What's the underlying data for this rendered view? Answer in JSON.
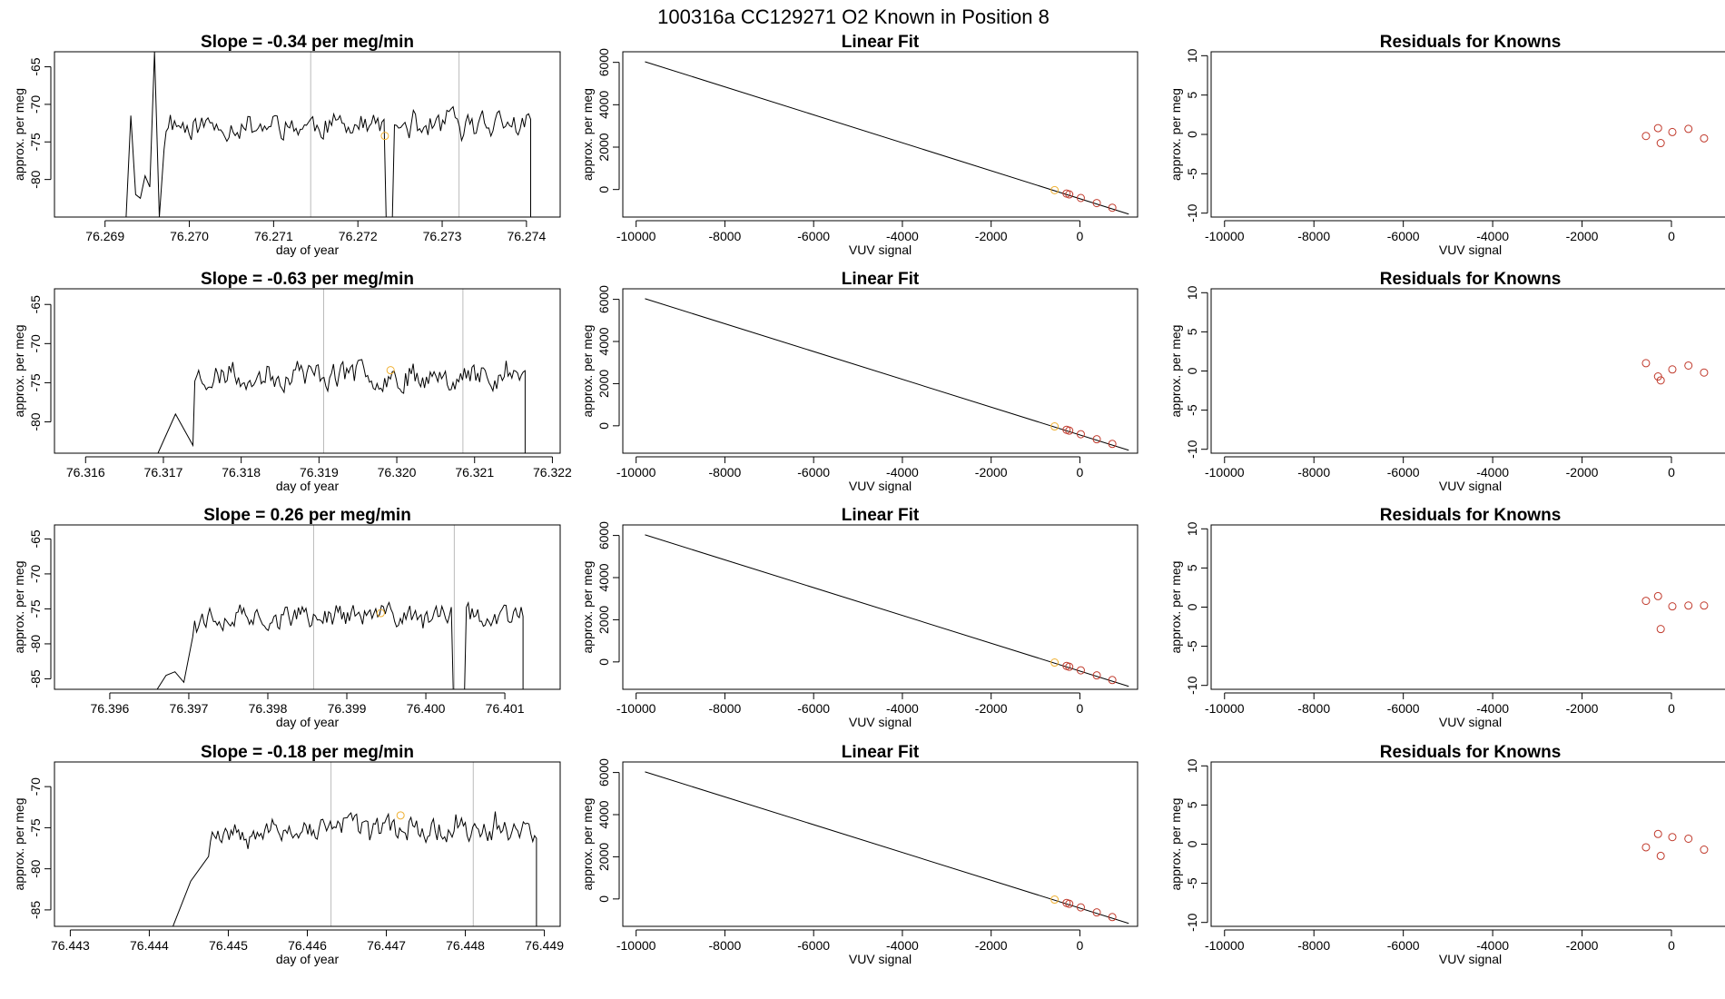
{
  "figure": {
    "title": "100316a      CC129271    O2 Known in Position  8",
    "colors": {
      "line": "#000000",
      "known": "#c0392b",
      "unknown": "#f0b030",
      "vline": "#bbbbbb",
      "axis": "#000000"
    }
  },
  "chart_data": [
    {
      "type": "line",
      "panel": "time-series",
      "row": 1,
      "title": "Slope =  -0.34  per meg/min",
      "xlabel": "day of year",
      "ylabel": "approx. per meg",
      "xlim": [
        76.2684,
        76.2744
      ],
      "ylim": [
        -85,
        -63
      ],
      "xticks": [
        "76.269",
        "76.270",
        "76.271",
        "76.272",
        "76.273",
        "76.274"
      ],
      "yticks": [
        "-65",
        "-70",
        "-75",
        "-80"
      ],
      "xstart": 76.26925,
      "xend": 76.27405,
      "seed": 11,
      "base": -72.8,
      "amp": 2.8,
      "start_curve": [
        -85,
        -71.5,
        -82,
        -82.5,
        -79.5,
        -81,
        -63,
        -85,
        -76
      ],
      "gaps": [
        [
          76.27233,
          76.27241
        ]
      ],
      "vlines": [
        76.27144,
        76.2732
      ],
      "highlight": {
        "x": 76.27232,
        "y": -74.2
      }
    },
    {
      "type": "line",
      "panel": "linear-fit",
      "row": 1,
      "title": "Linear Fit",
      "xlabel": "VUV signal",
      "ylabel": "approx. per meg",
      "xlim": [
        -10300,
        1300
      ],
      "ylim": [
        -1300,
        6500
      ],
      "xticks": [
        "-10000",
        "-8000",
        "-6000",
        "-4000",
        "-2000",
        "0"
      ],
      "yticks": [
        "0",
        "2000",
        "4000",
        "6000"
      ],
      "line": [
        [
          -9800,
          6030
        ],
        [
          1100,
          -1160
        ]
      ],
      "known_points": [
        [
          -300,
          -190
        ],
        [
          -240,
          -230
        ],
        [
          20,
          -400
        ],
        [
          380,
          -640
        ],
        [
          730,
          -860
        ]
      ],
      "unknown_point": [
        -570,
        -30
      ]
    },
    {
      "type": "scatter",
      "panel": "residuals",
      "row": 1,
      "title": "Residuals for Knowns",
      "xlabel": "VUV signal",
      "ylabel": "approx. per meg",
      "xlim": [
        -10300,
        1300
      ],
      "ylim": [
        -10.5,
        10.5
      ],
      "xticks": [
        "-10000",
        "-8000",
        "-6000",
        "-4000",
        "-2000",
        "0"
      ],
      "yticks": [
        "-10",
        "-5",
        "0",
        "5",
        "10"
      ],
      "points": [
        [
          -570,
          -0.2
        ],
        [
          -300,
          0.8
        ],
        [
          -240,
          -1.1
        ],
        [
          20,
          0.3
        ],
        [
          380,
          0.7
        ],
        [
          730,
          -0.5
        ]
      ]
    },
    {
      "type": "line",
      "panel": "time-series",
      "row": 2,
      "title": "Slope =  -0.63  per meg/min",
      "xlabel": "day of year",
      "ylabel": "approx. per meg",
      "xlim": [
        76.3156,
        76.3221
      ],
      "ylim": [
        -84,
        -63
      ],
      "xticks": [
        "76.316",
        "76.317",
        "76.318",
        "76.319",
        "76.320",
        "76.321",
        "76.322"
      ],
      "yticks": [
        "-65",
        "-70",
        "-75",
        "-80"
      ],
      "xstart": 76.31693,
      "xend": 76.32165,
      "seed": 23,
      "base": -74.0,
      "amp": 2.8,
      "start_curve": [
        -84,
        -79,
        -83
      ],
      "gaps": [],
      "vlines": [
        76.31906,
        76.32085
      ],
      "highlight": {
        "x": 76.31992,
        "y": -73.4
      }
    },
    {
      "type": "line",
      "panel": "linear-fit",
      "row": 2,
      "title": "Linear Fit",
      "xlabel": "VUV signal",
      "ylabel": "approx. per meg",
      "xlim": [
        -10300,
        1300
      ],
      "ylim": [
        -1300,
        6500
      ],
      "xticks": [
        "-10000",
        "-8000",
        "-6000",
        "-4000",
        "-2000",
        "0"
      ],
      "yticks": [
        "0",
        "2000",
        "4000",
        "6000"
      ],
      "line": [
        [
          -9800,
          6030
        ],
        [
          1100,
          -1160
        ]
      ],
      "known_points": [
        [
          -300,
          -190
        ],
        [
          -240,
          -230
        ],
        [
          20,
          -400
        ],
        [
          380,
          -640
        ],
        [
          730,
          -860
        ]
      ],
      "unknown_point": [
        -570,
        -30
      ]
    },
    {
      "type": "scatter",
      "panel": "residuals",
      "row": 2,
      "title": "Residuals for Knowns",
      "xlabel": "VUV signal",
      "ylabel": "approx. per meg",
      "xlim": [
        -10300,
        1300
      ],
      "ylim": [
        -10.5,
        10.5
      ],
      "xticks": [
        "-10000",
        "-8000",
        "-6000",
        "-4000",
        "-2000",
        "0"
      ],
      "yticks": [
        "-10",
        "-5",
        "0",
        "5",
        "10"
      ],
      "points": [
        [
          -570,
          1.0
        ],
        [
          -300,
          -0.7
        ],
        [
          -240,
          -1.2
        ],
        [
          20,
          0.2
        ],
        [
          380,
          0.7
        ],
        [
          730,
          -0.2
        ]
      ]
    },
    {
      "type": "line",
      "panel": "time-series",
      "row": 3,
      "title": "Slope =  0.26  per meg/min",
      "xlabel": "day of year",
      "ylabel": "approx. per meg",
      "xlim": [
        76.3953,
        76.4017
      ],
      "ylim": [
        -86.5,
        -63
      ],
      "xticks": [
        "76.396",
        "76.397",
        "76.398",
        "76.399",
        "76.400",
        "76.401"
      ],
      "yticks": [
        "-65",
        "-70",
        "-75",
        "-80",
        "-85"
      ],
      "xstart": 76.3966,
      "xend": 76.40123,
      "seed": 37,
      "base": -76.0,
      "amp": 2.6,
      "start_curve": [
        -86.5,
        -84.5,
        -84,
        -85.5,
        -79
      ],
      "gaps": [
        [
          76.40033,
          76.40049
        ]
      ],
      "vlines": [
        76.39858,
        76.40036
      ],
      "highlight": {
        "x": 76.39943,
        "y": -75.6
      }
    },
    {
      "type": "line",
      "panel": "linear-fit",
      "row": 3,
      "title": "Linear Fit",
      "xlabel": "VUV signal",
      "ylabel": "approx. per meg",
      "xlim": [
        -10300,
        1300
      ],
      "ylim": [
        -1300,
        6500
      ],
      "xticks": [
        "-10000",
        "-8000",
        "-6000",
        "-4000",
        "-2000",
        "0"
      ],
      "yticks": [
        "0",
        "2000",
        "4000",
        "6000"
      ],
      "line": [
        [
          -9800,
          6030
        ],
        [
          1100,
          -1160
        ]
      ],
      "known_points": [
        [
          -300,
          -190
        ],
        [
          -240,
          -230
        ],
        [
          20,
          -400
        ],
        [
          380,
          -640
        ],
        [
          730,
          -860
        ]
      ],
      "unknown_point": [
        -570,
        -30
      ]
    },
    {
      "type": "scatter",
      "panel": "residuals",
      "row": 3,
      "title": "Residuals for Knowns",
      "xlabel": "VUV signal",
      "ylabel": "approx. per meg",
      "xlim": [
        -10300,
        1300
      ],
      "ylim": [
        -10.5,
        10.5
      ],
      "xticks": [
        "-10000",
        "-8000",
        "-6000",
        "-4000",
        "-2000",
        "0"
      ],
      "yticks": [
        "-10",
        "-5",
        "0",
        "5",
        "10"
      ],
      "points": [
        [
          -570,
          0.8
        ],
        [
          -300,
          1.4
        ],
        [
          -240,
          -2.8
        ],
        [
          20,
          0.1
        ],
        [
          380,
          0.2
        ],
        [
          730,
          0.2
        ]
      ]
    },
    {
      "type": "line",
      "panel": "time-series",
      "row": 4,
      "title": "Slope =  -0.18  per meg/min",
      "xlabel": "day of year",
      "ylabel": "approx. per meg",
      "xlim": [
        76.4428,
        76.4492
      ],
      "ylim": [
        -87,
        -67
      ],
      "xticks": [
        "76.443",
        "76.444",
        "76.445",
        "76.446",
        "76.447",
        "76.448",
        "76.449"
      ],
      "yticks": [
        "-70",
        "-75",
        "-80",
        "-85"
      ],
      "xstart": 76.4443,
      "xend": 76.4489,
      "seed": 53,
      "base": -75.2,
      "amp": 2.3,
      "start_curve": [
        -87,
        -81.5,
        -78.5
      ],
      "gaps": [],
      "vlines": [
        76.4463,
        76.4481
      ],
      "highlight": {
        "x": 76.44718,
        "y": -73.5
      }
    },
    {
      "type": "line",
      "panel": "linear-fit",
      "row": 4,
      "title": "Linear Fit",
      "xlabel": "VUV signal",
      "ylabel": "approx. per meg",
      "xlim": [
        -10300,
        1300
      ],
      "ylim": [
        -1300,
        6500
      ],
      "xticks": [
        "-10000",
        "-8000",
        "-6000",
        "-4000",
        "-2000",
        "0"
      ],
      "yticks": [
        "0",
        "2000",
        "4000",
        "6000"
      ],
      "line": [
        [
          -9800,
          6030
        ],
        [
          1100,
          -1160
        ]
      ],
      "known_points": [
        [
          -300,
          -190
        ],
        [
          -240,
          -230
        ],
        [
          20,
          -400
        ],
        [
          380,
          -640
        ],
        [
          730,
          -860
        ]
      ],
      "unknown_point": [
        -570,
        -30
      ]
    },
    {
      "type": "scatter",
      "panel": "residuals",
      "row": 4,
      "title": "Residuals for Knowns",
      "xlabel": "VUV signal",
      "ylabel": "approx. per meg",
      "xlim": [
        -10300,
        1300
      ],
      "ylim": [
        -10.5,
        10.5
      ],
      "xticks": [
        "-10000",
        "-8000",
        "-6000",
        "-4000",
        "-2000",
        "0"
      ],
      "yticks": [
        "-10",
        "-5",
        "0",
        "5",
        "10"
      ],
      "points": [
        [
          -570,
          -0.4
        ],
        [
          -300,
          1.3
        ],
        [
          -240,
          -1.5
        ],
        [
          20,
          0.9
        ],
        [
          380,
          0.7
        ],
        [
          730,
          -0.7
        ]
      ]
    }
  ]
}
